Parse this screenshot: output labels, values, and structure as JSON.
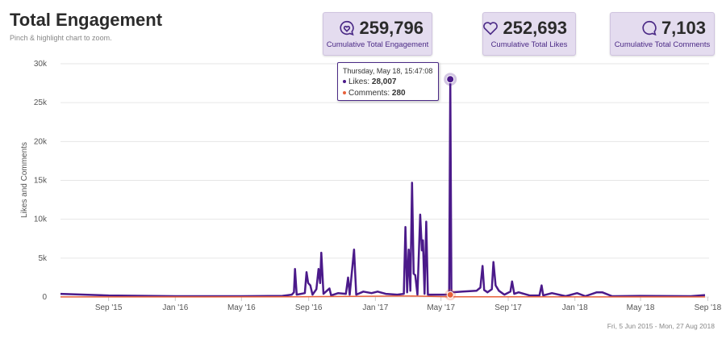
{
  "header": {
    "title": "Total Engagement",
    "subtitle": "Pinch & highlight chart to zoom."
  },
  "cards": [
    {
      "value": "259,796",
      "label": "Cumulative Total Engagement",
      "icon": "engagement-bubble-heart-icon"
    },
    {
      "value": "252,693",
      "label": "Cumulative Total Likes",
      "icon": "heart-icon"
    },
    {
      "value": "7,103",
      "label": "Cumulative Total Comments",
      "icon": "comment-bubble-icon"
    }
  ],
  "tooltip": {
    "header": "Thursday, May 18, 15:47:08",
    "likes_label": "Likes: ",
    "likes_value": "28,007",
    "comments_label": "Comments: ",
    "comments_value": "280"
  },
  "date_range": "Fri, 5 Jun 2015 - Mon, 27 Aug 2018",
  "colors": {
    "likes": "#4b1a8a",
    "comments": "#e8613a",
    "card_bg": "#e4dcef",
    "accent": "#4b2a86"
  },
  "chart_data": {
    "type": "line",
    "title": "Total Engagement",
    "ylabel": "Likes and Comments",
    "xlabel": "",
    "xlim": [
      "2015-06-05",
      "2018-08-27"
    ],
    "ylim": [
      0,
      30000
    ],
    "yticks": [
      0,
      5000,
      10000,
      15000,
      20000,
      25000,
      30000
    ],
    "ytick_labels": [
      "0",
      "5k",
      "10k",
      "15k",
      "20k",
      "25k",
      "30k"
    ],
    "xticks": [
      "2015-09-01",
      "2016-01-01",
      "2016-05-01",
      "2016-09-01",
      "2017-01-01",
      "2017-05-01",
      "2017-09-01",
      "2018-01-01",
      "2018-05-01",
      "2018-09-01"
    ],
    "xtick_labels": [
      "Sep '15",
      "Jan '16",
      "May '16",
      "Sep '16",
      "Jan '17",
      "May '17",
      "Sep '17",
      "Jan '18",
      "May '18",
      "Sep '18"
    ],
    "grid": true,
    "highlight": {
      "date": "2017-05-18",
      "likes": 28007,
      "comments": 280
    },
    "series": [
      {
        "name": "Likes",
        "color": "#4b1a8a",
        "points": [
          [
            "2015-06-05",
            400
          ],
          [
            "2015-09-01",
            200
          ],
          [
            "2016-01-01",
            100
          ],
          [
            "2016-05-01",
            100
          ],
          [
            "2016-07-15",
            150
          ],
          [
            "2016-08-01",
            300
          ],
          [
            "2016-08-05",
            600
          ],
          [
            "2016-08-07",
            3600
          ],
          [
            "2016-08-10",
            300
          ],
          [
            "2016-08-25",
            500
          ],
          [
            "2016-08-28",
            3200
          ],
          [
            "2016-08-31",
            1800
          ],
          [
            "2016-09-04",
            1500
          ],
          [
            "2016-09-08",
            300
          ],
          [
            "2016-09-15",
            1000
          ],
          [
            "2016-09-19",
            3600
          ],
          [
            "2016-09-22",
            1800
          ],
          [
            "2016-09-24",
            5700
          ],
          [
            "2016-09-28",
            400
          ],
          [
            "2016-10-09",
            1100
          ],
          [
            "2016-10-12",
            200
          ],
          [
            "2016-10-25",
            500
          ],
          [
            "2016-11-08",
            400
          ],
          [
            "2016-11-12",
            2500
          ],
          [
            "2016-11-15",
            300
          ],
          [
            "2016-11-23",
            6100
          ],
          [
            "2016-11-27",
            300
          ],
          [
            "2016-12-10",
            700
          ],
          [
            "2016-12-25",
            500
          ],
          [
            "2017-01-05",
            700
          ],
          [
            "2017-01-20",
            400
          ],
          [
            "2017-02-10",
            300
          ],
          [
            "2017-02-22",
            400
          ],
          [
            "2017-02-25",
            9000
          ],
          [
            "2017-02-28",
            600
          ],
          [
            "2017-03-03",
            6100
          ],
          [
            "2017-03-06",
            800
          ],
          [
            "2017-03-09",
            14700
          ],
          [
            "2017-03-12",
            3000
          ],
          [
            "2017-03-15",
            2800
          ],
          [
            "2017-03-19",
            300
          ],
          [
            "2017-03-24",
            10600
          ],
          [
            "2017-03-27",
            6000
          ],
          [
            "2017-03-29",
            7300
          ],
          [
            "2017-04-01",
            400
          ],
          [
            "2017-04-04",
            9700
          ],
          [
            "2017-04-07",
            300
          ],
          [
            "2017-04-25",
            300
          ],
          [
            "2017-05-16",
            300
          ],
          [
            "2017-05-18",
            28007
          ],
          [
            "2017-05-20",
            600
          ],
          [
            "2017-06-10",
            700
          ],
          [
            "2017-07-05",
            800
          ],
          [
            "2017-07-12",
            1200
          ],
          [
            "2017-07-16",
            4000
          ],
          [
            "2017-07-19",
            900
          ],
          [
            "2017-07-25",
            600
          ],
          [
            "2017-08-02",
            1000
          ],
          [
            "2017-08-05",
            4500
          ],
          [
            "2017-08-09",
            1500
          ],
          [
            "2017-08-15",
            800
          ],
          [
            "2017-08-25",
            300
          ],
          [
            "2017-09-05",
            700
          ],
          [
            "2017-09-08",
            2000
          ],
          [
            "2017-09-12",
            400
          ],
          [
            "2017-09-20",
            600
          ],
          [
            "2017-10-10",
            200
          ],
          [
            "2017-10-28",
            200
          ],
          [
            "2017-11-01",
            1500
          ],
          [
            "2017-11-04",
            200
          ],
          [
            "2017-11-20",
            500
          ],
          [
            "2017-12-15",
            100
          ],
          [
            "2018-01-05",
            500
          ],
          [
            "2018-01-20",
            100
          ],
          [
            "2018-02-10",
            600
          ],
          [
            "2018-02-20",
            600
          ],
          [
            "2018-03-10",
            100
          ],
          [
            "2018-05-01",
            150
          ],
          [
            "2018-08-01",
            100
          ],
          [
            "2018-08-27",
            250
          ]
        ]
      },
      {
        "name": "Comments",
        "color": "#e8613a",
        "points": [
          [
            "2015-06-05",
            10
          ],
          [
            "2016-08-01",
            20
          ],
          [
            "2017-03-09",
            120
          ],
          [
            "2017-05-16",
            30
          ],
          [
            "2017-05-18",
            280
          ],
          [
            "2017-05-20",
            30
          ],
          [
            "2018-08-27",
            10
          ]
        ]
      }
    ]
  }
}
